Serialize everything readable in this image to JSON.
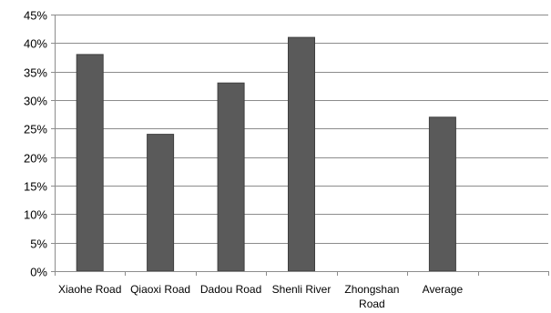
{
  "chart_data": {
    "type": "bar",
    "categories": [
      [
        "Xiaohe Road"
      ],
      [
        "Qiaoxi Road"
      ],
      [
        "Dadou Road"
      ],
      [
        "Shenli River"
      ],
      [
        "Zhongshan",
        "Road"
      ],
      [
        "Average"
      ],
      [
        ""
      ]
    ],
    "values": [
      38,
      24,
      33,
      41,
      null,
      27,
      null
    ],
    "y_ticks": [
      "0%",
      "5%",
      "10%",
      "15%",
      "20%",
      "25%",
      "30%",
      "35%",
      "40%",
      "45%"
    ],
    "ylim": [
      0,
      45
    ],
    "y_step": 5,
    "grid": true,
    "legend": "none",
    "bar_color": "#5a5a5a",
    "bar_edge_color": "#3f3f3f",
    "grid_color": "#8c8c8c"
  }
}
